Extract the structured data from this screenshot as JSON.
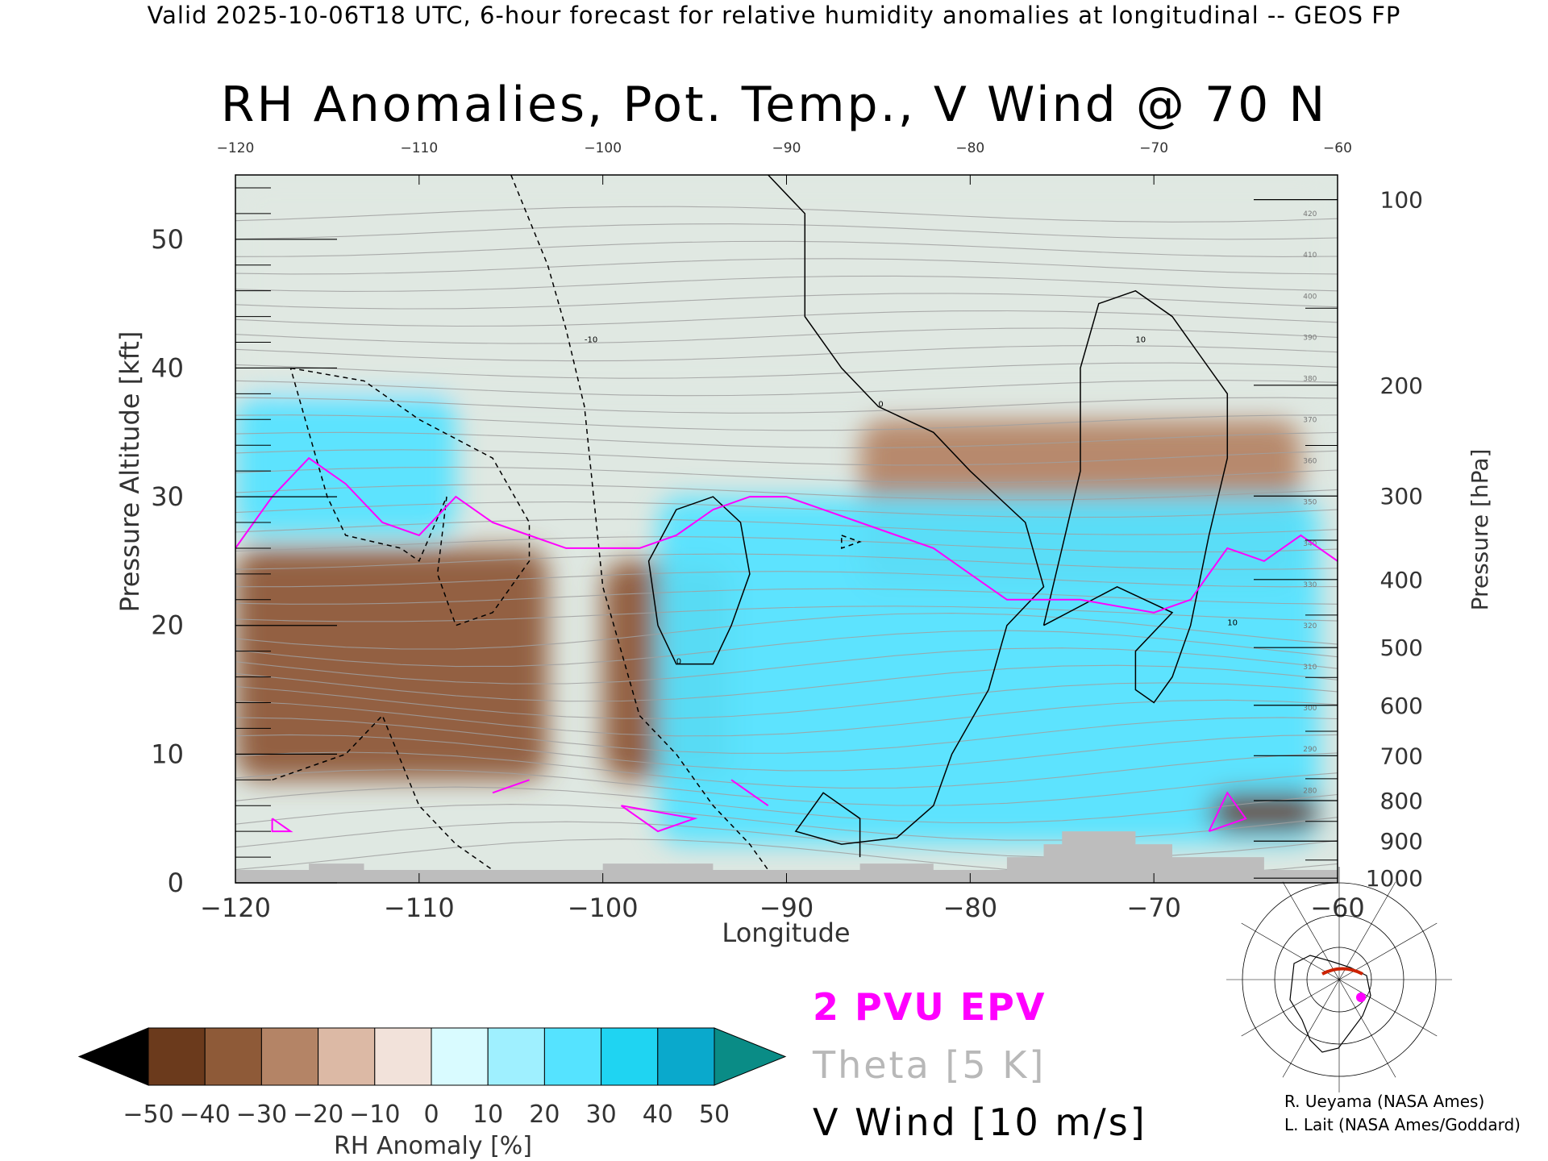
{
  "caption": "Valid 2025-10-06T18 UTC, 6-hour forecast for relative humidity anomalies at longitudinal -- GEOS FP",
  "title": "RH Anomalies, Pot. Temp., V Wind @ 70 N",
  "legend": {
    "epv": "2 PVU EPV",
    "theta": "Theta [5 K]",
    "vwind": "V Wind [10 m/s]"
  },
  "credits": [
    "R. Ueyama (NASA Ames)",
    "L. Lait (NASA Ames/Goddard)"
  ],
  "colors": {
    "epv": "#ff00ff",
    "theta": "#a0a0a0",
    "vwind": "#000000",
    "terrain": "#bdbdbd",
    "neutral": "#dfe8e2"
  },
  "chart_data": {
    "type": "heatmap",
    "xlabel": "Longitude",
    "ylabel": "Pressure Altitude [kft]",
    "ylabel_right": "Pressure [hPa]",
    "xlim": [
      -120,
      -60
    ],
    "ylim": [
      0,
      55
    ],
    "x_ticks": [
      -120,
      -110,
      -100,
      -90,
      -80,
      -70,
      -60
    ],
    "y_ticks": [
      0,
      10,
      20,
      30,
      40,
      50
    ],
    "pressure_ticks": [
      100,
      200,
      300,
      400,
      500,
      600,
      700,
      800,
      900,
      1000
    ],
    "colorbar": {
      "label": "RH Anomaly [%]",
      "ticks": [
        -50,
        -40,
        -30,
        -20,
        -10,
        0,
        10,
        20,
        30,
        40,
        50
      ],
      "colors": [
        "#000000",
        "#4b220a",
        "#6b3a1c",
        "#8e5a38",
        "#b48466",
        "#dcb9a5",
        "#f2e2da",
        "#d9fbff",
        "#9ff0ff",
        "#55e3ff",
        "#1fd4f2",
        "#0aa9cc",
        "#067a99",
        "#0a8c86"
      ]
    },
    "theta_contour_labels": [
      280,
      290,
      300,
      310,
      320,
      330,
      340,
      350,
      360,
      370,
      380,
      390,
      400,
      410,
      420
    ],
    "vwind_contour_labels": [
      -10,
      0,
      10
    ],
    "rh_anomaly_regions": [
      {
        "lon": [
          -120,
          -103
        ],
        "alt_kft": [
          8,
          26
        ],
        "rh_anomaly": -40
      },
      {
        "lon": [
          -100,
          -93
        ],
        "alt_kft": [
          8,
          25
        ],
        "rh_anomaly": -40
      },
      {
        "lon": [
          -86,
          -62
        ],
        "alt_kft": [
          23,
          36
        ],
        "rh_anomaly": -30
      },
      {
        "lon": [
          -97,
          -61
        ],
        "alt_kft": [
          3,
          30
        ],
        "rh_anomaly": 25
      },
      {
        "lon": [
          -120,
          -108
        ],
        "alt_kft": [
          27,
          38
        ],
        "rh_anomaly": 20
      },
      {
        "lon": [
          -67,
          -61
        ],
        "alt_kft": [
          4,
          7
        ],
        "rh_anomaly": -45
      },
      {
        "lon": [
          -120,
          -60
        ],
        "alt_kft": [
          38,
          55
        ],
        "rh_anomaly": 0
      }
    ],
    "epv_2pvu_tropopause": {
      "lon": [
        -120,
        -118,
        -116,
        -114,
        -112,
        -110,
        -108,
        -106,
        -104,
        -102,
        -100,
        -98,
        -96,
        -94,
        -92,
        -90,
        -88,
        -86,
        -84,
        -82,
        -80,
        -78,
        -76,
        -74,
        -72,
        -70,
        -68,
        -66,
        -64,
        -62,
        -60
      ],
      "alt_kft": [
        26,
        30,
        33,
        31,
        28,
        27,
        30,
        28,
        27,
        26,
        26,
        26,
        27,
        29,
        30,
        30,
        29,
        28,
        27,
        26,
        24,
        22,
        22,
        22,
        21.5,
        21,
        22,
        26,
        25,
        27,
        25
      ]
    }
  }
}
